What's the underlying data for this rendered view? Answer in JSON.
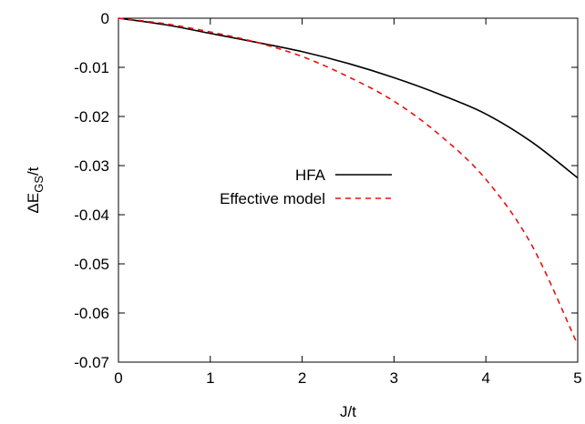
{
  "chart_data": {
    "type": "line",
    "xlabel": "J/t",
    "ylabel": {
      "prefix": "ΔE",
      "subscript": "GS",
      "suffix": "/t"
    },
    "xlim": [
      0,
      5
    ],
    "ylim": [
      -0.07,
      0
    ],
    "x_ticks": [
      0,
      1,
      2,
      3,
      4,
      5
    ],
    "x_tick_labels": [
      "0",
      "1",
      "2",
      "3",
      "4",
      "5"
    ],
    "y_ticks": [
      0,
      -0.01,
      -0.02,
      -0.03,
      -0.04,
      -0.05,
      -0.06,
      -0.07
    ],
    "y_tick_labels": [
      "0",
      "-0.01",
      "-0.02",
      "-0.03",
      "-0.04",
      "-0.05",
      "-0.06",
      "-0.07"
    ],
    "grid": false,
    "legend_position": "center-right",
    "series": [
      {
        "name": "HFA",
        "color": "#000000",
        "style": "solid",
        "x": [
          0,
          0.5,
          1,
          1.5,
          2,
          2.5,
          3,
          3.5,
          4,
          4.5,
          5
        ],
        "y": [
          0,
          -0.0013,
          -0.0031,
          -0.0049,
          -0.0068,
          -0.0092,
          -0.0121,
          -0.0155,
          -0.0195,
          -0.0252,
          -0.0325
        ]
      },
      {
        "name": "Effective model",
        "color": "#e8110f",
        "style": "dashed",
        "x": [
          0,
          0.5,
          1,
          1.5,
          2,
          2.5,
          3,
          3.5,
          4,
          4.5,
          5
        ],
        "y": [
          0,
          -0.0011,
          -0.0028,
          -0.0049,
          -0.0078,
          -0.0119,
          -0.0169,
          -0.0238,
          -0.0328,
          -0.0462,
          -0.0665
        ]
      }
    ]
  }
}
